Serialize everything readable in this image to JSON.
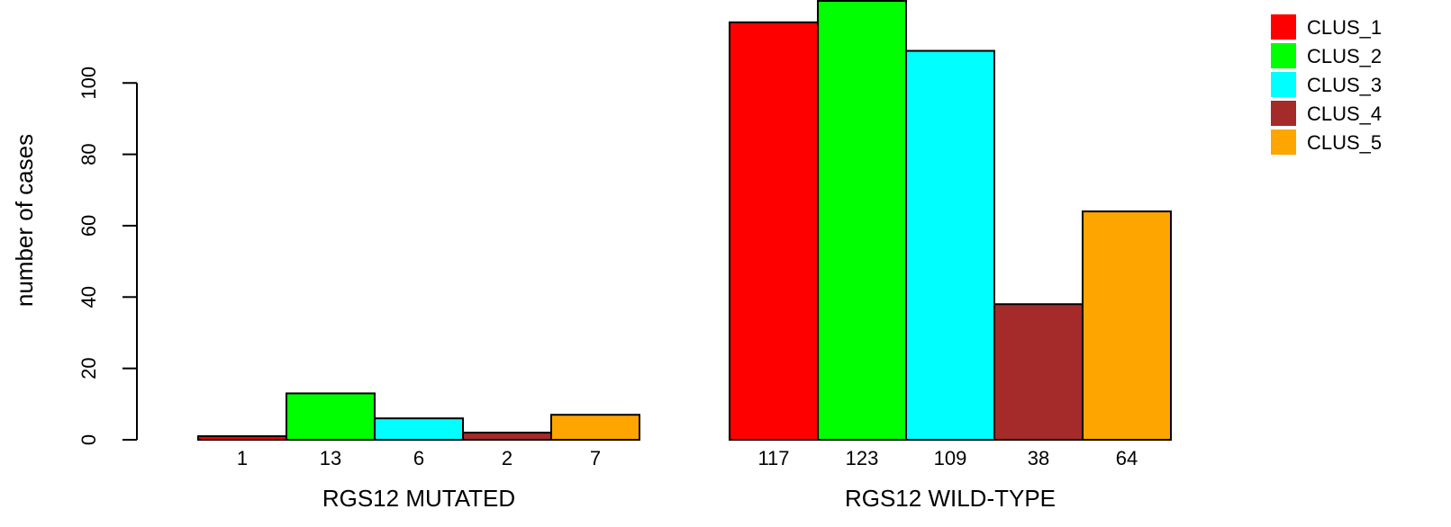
{
  "chart_data": {
    "type": "bar",
    "ylabel": "number of cases",
    "ylim": [
      0,
      123
    ],
    "yticks": [
      0,
      20,
      40,
      60,
      80,
      100
    ],
    "groups": [
      {
        "label": "RGS12 MUTATED",
        "values": [
          1,
          13,
          6,
          2,
          7
        ]
      },
      {
        "label": "RGS12 WILD-TYPE",
        "values": [
          117,
          123,
          109,
          38,
          64
        ]
      }
    ],
    "series": [
      {
        "name": "CLUS_1",
        "color": "#ff0000"
      },
      {
        "name": "CLUS_2",
        "color": "#00ff00"
      },
      {
        "name": "CLUS_3",
        "color": "#00ffff"
      },
      {
        "name": "CLUS_4",
        "color": "#a52a2a"
      },
      {
        "name": "CLUS_5",
        "color": "#ffa500"
      }
    ],
    "legend_position": "top-right",
    "grid": false
  }
}
